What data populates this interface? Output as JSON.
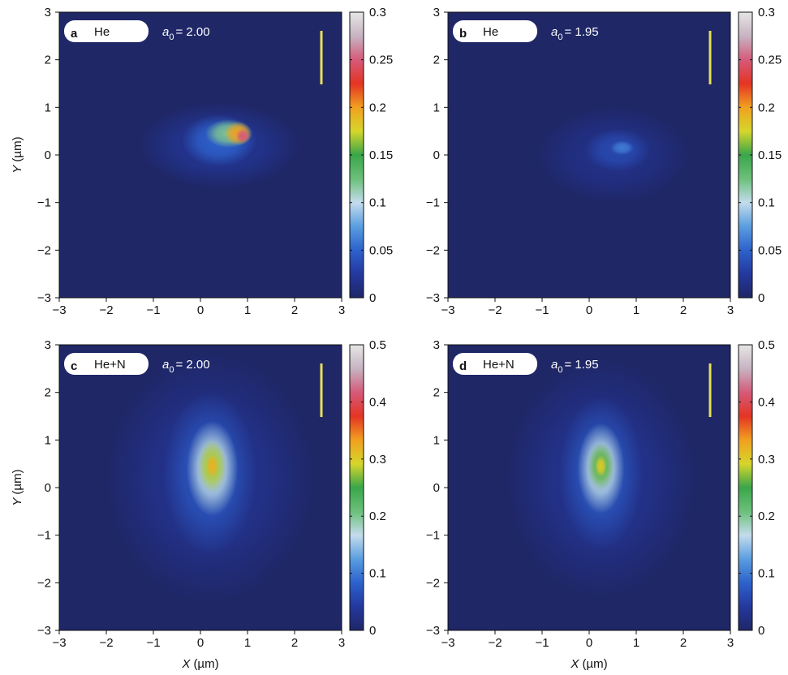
{
  "chart_data": [
    {
      "type": "heatmap",
      "panel": "a",
      "gas": "He",
      "annotation": [
        "a",
        "0",
        "= 2.00"
      ],
      "ylabel": [
        "Y",
        "(µm)"
      ],
      "xlim": [
        -3,
        3
      ],
      "ylim": [
        -3,
        3
      ],
      "xticks": [
        {
          "value": -3,
          "label": "−3"
        },
        {
          "value": -2,
          "label": "−2"
        },
        {
          "value": -1,
          "label": "−1"
        },
        0,
        1,
        2,
        3
      ],
      "yticks": [
        {
          "value": -3,
          "label": "−3"
        },
        {
          "value": -2,
          "label": "−2"
        },
        {
          "value": -1,
          "label": "−1"
        },
        0,
        1,
        2,
        3
      ],
      "clim": [
        0,
        0.3
      ],
      "cticks": [
        0,
        0.05,
        0.1,
        0.15,
        0.2,
        0.25,
        0.3
      ],
      "colormap": [
        "#1f2767",
        "#24389e",
        "#2d62cc",
        "#5a9ee0",
        "#c4dced",
        "#6cc07a",
        "#3aa64a",
        "#d6d62c",
        "#f1a020",
        "#e43424",
        "#d55a7a",
        "#c7b4c2",
        "#e6e6e6"
      ],
      "spots": [
        {
          "x": 0.4,
          "y": 0.2,
          "sx": 1.7,
          "sy": 0.9,
          "value": 0.02
        },
        {
          "x": 0.4,
          "y": 0.3,
          "sx": 0.8,
          "sy": 0.55,
          "value": 0.05
        },
        {
          "x": 0.6,
          "y": 0.45,
          "sx": 0.5,
          "sy": 0.3,
          "value": 0.12
        },
        {
          "x": 0.8,
          "y": 0.45,
          "sx": 0.3,
          "sy": 0.25,
          "value": 0.2
        },
        {
          "x": 0.9,
          "y": 0.4,
          "sx": 0.15,
          "sy": 0.15,
          "value": 0.25
        }
      ]
    },
    {
      "type": "heatmap",
      "panel": "b",
      "gas": "He",
      "annotation": [
        "a",
        "0",
        "= 1.95"
      ],
      "xlim": [
        -3,
        3
      ],
      "ylim": [
        -3,
        3
      ],
      "xticks": [
        {
          "value": -3,
          "label": "−3"
        },
        {
          "value": -2,
          "label": "−2"
        },
        {
          "value": -1,
          "label": "−1"
        },
        0,
        1,
        2,
        3
      ],
      "yticks": [
        {
          "value": -3,
          "label": "−3"
        },
        {
          "value": -2,
          "label": "−2"
        },
        {
          "value": -1,
          "label": "−1"
        },
        0,
        1,
        2,
        3
      ],
      "clim": [
        0,
        0.3
      ],
      "cticks": [
        0,
        0.05,
        0.1,
        0.15,
        0.2,
        0.25,
        0.3
      ],
      "colormap": [
        "#1f2767",
        "#24389e",
        "#2d62cc",
        "#5a9ee0",
        "#c4dced",
        "#6cc07a",
        "#3aa64a",
        "#d6d62c",
        "#f1a020",
        "#e43424",
        "#d55a7a",
        "#c7b4c2",
        "#e6e6e6"
      ],
      "spots": [
        {
          "x": 0.5,
          "y": 0.0,
          "sx": 1.6,
          "sy": 1.0,
          "value": 0.015
        },
        {
          "x": 0.6,
          "y": 0.1,
          "sx": 0.7,
          "sy": 0.45,
          "value": 0.035
        },
        {
          "x": 0.7,
          "y": 0.15,
          "sx": 0.25,
          "sy": 0.15,
          "value": 0.06
        }
      ]
    },
    {
      "type": "heatmap",
      "panel": "c",
      "gas": "He+N",
      "annotation": [
        "a",
        "0",
        "= 2.00"
      ],
      "ylabel": [
        "Y",
        "(µm)"
      ],
      "xlabel": [
        "X",
        "(µm)"
      ],
      "xlim": [
        -3,
        3
      ],
      "ylim": [
        -3,
        3
      ],
      "xticks": [
        {
          "value": -3,
          "label": "−3"
        },
        {
          "value": -2,
          "label": "−2"
        },
        {
          "value": -1,
          "label": "−1"
        },
        0,
        1,
        2,
        3
      ],
      "yticks": [
        {
          "value": -3,
          "label": "−3"
        },
        {
          "value": -2,
          "label": "−2"
        },
        {
          "value": -1,
          "label": "−1"
        },
        0,
        1,
        2,
        3
      ],
      "clim": [
        0,
        0.5
      ],
      "cticks": [
        0,
        0.1,
        0.2,
        0.3,
        0.4,
        0.5
      ],
      "colormap": [
        "#1f2767",
        "#24389e",
        "#2d62cc",
        "#5a9ee0",
        "#c4dced",
        "#6cc07a",
        "#3aa64a",
        "#d6d62c",
        "#f1a020",
        "#e43424",
        "#d55a7a",
        "#c7b4c2",
        "#e6e6e6"
      ],
      "spots": [
        {
          "x": 0.2,
          "y": 0.2,
          "sx": 2.2,
          "sy": 2.6,
          "value": 0.03
        },
        {
          "x": 0.2,
          "y": 0.3,
          "sx": 1.0,
          "sy": 1.7,
          "value": 0.07
        },
        {
          "x": 0.25,
          "y": 0.4,
          "sx": 0.55,
          "sy": 1.0,
          "value": 0.17
        },
        {
          "x": 0.25,
          "y": 0.45,
          "sx": 0.3,
          "sy": 0.55,
          "value": 0.28
        },
        {
          "x": 0.25,
          "y": 0.45,
          "sx": 0.13,
          "sy": 0.25,
          "value": 0.32
        }
      ]
    },
    {
      "type": "heatmap",
      "panel": "d",
      "gas": "He+N",
      "annotation": [
        "a",
        "0",
        "= 1.95"
      ],
      "xlabel": [
        "X",
        "(µm)"
      ],
      "xlim": [
        -3,
        3
      ],
      "ylim": [
        -3,
        3
      ],
      "xticks": [
        {
          "value": -3,
          "label": "−3"
        },
        {
          "value": -2,
          "label": "−2"
        },
        {
          "value": -1,
          "label": "−1"
        },
        0,
        1,
        2,
        3
      ],
      "yticks": [
        {
          "value": -3,
          "label": "−3"
        },
        {
          "value": -2,
          "label": "−2"
        },
        {
          "value": -1,
          "label": "−1"
        },
        0,
        1,
        2,
        3
      ],
      "clim": [
        0,
        0.5
      ],
      "cticks": [
        0,
        0.1,
        0.2,
        0.3,
        0.4,
        0.5
      ],
      "colormap": [
        "#1f2767",
        "#24389e",
        "#2d62cc",
        "#5a9ee0",
        "#c4dced",
        "#6cc07a",
        "#3aa64a",
        "#d6d62c",
        "#f1a020",
        "#e43424",
        "#d55a7a",
        "#c7b4c2",
        "#e6e6e6"
      ],
      "spots": [
        {
          "x": 0.25,
          "y": 0.2,
          "sx": 2.0,
          "sy": 2.5,
          "value": 0.03
        },
        {
          "x": 0.25,
          "y": 0.3,
          "sx": 0.9,
          "sy": 1.6,
          "value": 0.07
        },
        {
          "x": 0.25,
          "y": 0.4,
          "sx": 0.5,
          "sy": 0.95,
          "value": 0.17
        },
        {
          "x": 0.25,
          "y": 0.45,
          "sx": 0.28,
          "sy": 0.5,
          "value": 0.26
        },
        {
          "x": 0.25,
          "y": 0.45,
          "sx": 0.12,
          "sy": 0.22,
          "value": 0.3
        }
      ]
    }
  ]
}
